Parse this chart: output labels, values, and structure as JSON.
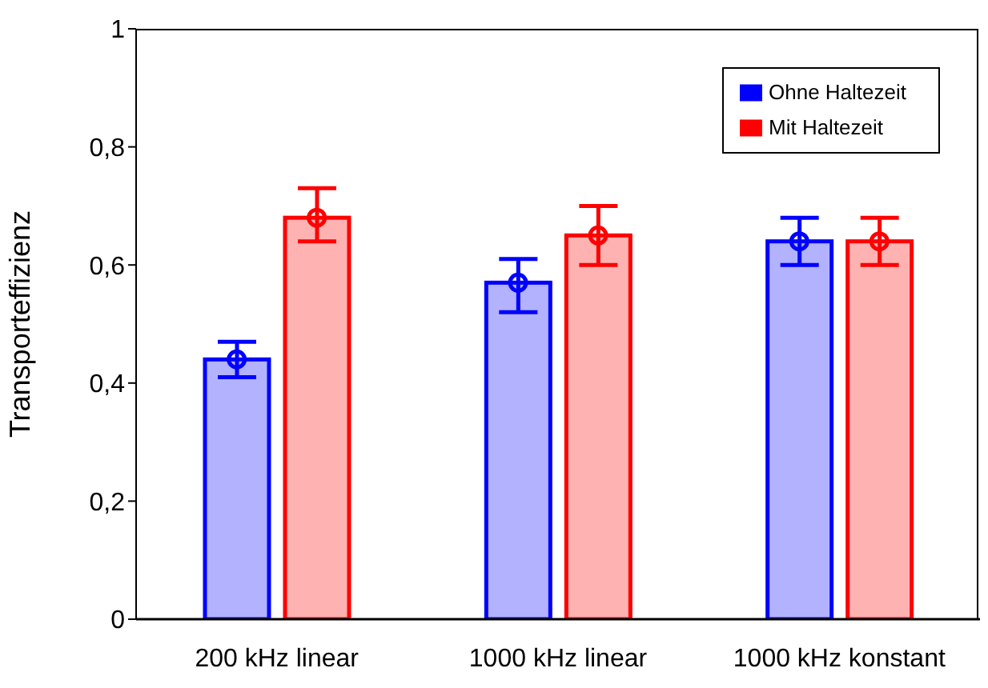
{
  "chart_data": {
    "type": "bar",
    "ylabel": "Transporteffizienz",
    "categories": [
      "200 kHz linear",
      "1000 kHz linear",
      "1000 kHz konstant"
    ],
    "series": [
      {
        "name": "Ohne Haltezeit",
        "color": "#0000ff",
        "values": [
          0.44,
          0.57,
          0.64
        ],
        "errors": [
          [
            0.41,
            0.47
          ],
          [
            0.52,
            0.61
          ],
          [
            0.6,
            0.68
          ]
        ]
      },
      {
        "name": "Mit Haltezeit",
        "color": "#ff0000",
        "values": [
          0.68,
          0.65,
          0.64
        ],
        "errors": [
          [
            0.64,
            0.73
          ],
          [
            0.6,
            0.7
          ],
          [
            0.6,
            0.68
          ]
        ]
      },
      {
        "type": "scatter",
        "color": "#0000ff",
        "x": [
          "200 kHz linear",
          "1000 kHz linear",
          "1000 kHz konstant"
        ],
        "values": [
          0.44,
          0.57,
          0.64
        ]
      },
      {
        "type": "scatter",
        "color": "#ff0000",
        "x": [
          "200 kHz linear",
          "1000 kHz linear",
          "1000 kHz konstant"
        ],
        "values": [
          0.68,
          0.65,
          0.64
        ]
      }
    ],
    "ylim": [
      0,
      1
    ],
    "yticks": [
      0,
      {
        "value": 0.2,
        "label": "0,2"
      },
      {
        "value": 0.4,
        "label": "0,4"
      },
      {
        "value": 0.6,
        "label": "0,6"
      },
      {
        "value": 0.8,
        "label": "0,8"
      },
      1
    ],
    "marker": "circle",
    "legend": "top right",
    "grid": false
  }
}
